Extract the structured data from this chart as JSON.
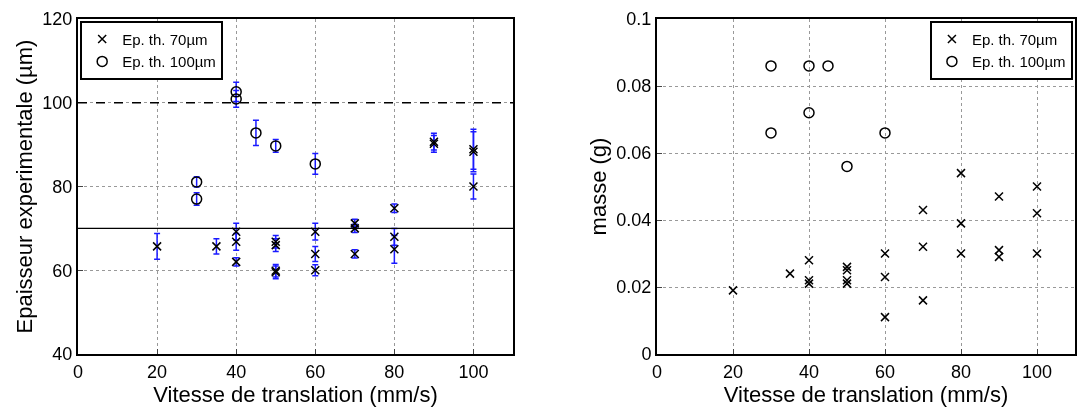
{
  "chart_data": [
    {
      "type": "scatter",
      "xlabel": "Vitesse de translation (mm/s)",
      "ylabel": "Epaisseur experimentale (µm)",
      "xlim": [
        0,
        110
      ],
      "ylim": [
        40,
        120
      ],
      "xticks": [
        0,
        20,
        40,
        60,
        80,
        100
      ],
      "yticks": [
        40,
        60,
        80,
        100,
        120
      ],
      "grid": true,
      "legend": "top left",
      "series": [
        {
          "name": "Ep. th. 70µm",
          "color": "#000000",
          "marker": "cross",
          "x": [
            20,
            35,
            40,
            40,
            40,
            50,
            50,
            50,
            50,
            60,
            60,
            60,
            70,
            70,
            70,
            80,
            80,
            80,
            90,
            90,
            100,
            100,
            100
          ],
          "values": [
            65.7,
            65.7,
            69.2,
            66.8,
            62.0,
            66.8,
            66.0,
            59.9,
            59.5,
            69.2,
            63.9,
            60.0,
            71.2,
            70.0,
            63.9,
            74.8,
            68.0,
            65.0,
            90.7,
            90.2,
            88.9,
            88.3,
            80.0
          ],
          "errors": [
            3.1,
            1.8,
            2,
            2,
            1,
            1.5,
            1.5,
            1.5,
            1.5,
            2,
            1.8,
            1.3,
            1,
            1,
            1,
            1,
            2,
            3.3,
            2,
            2,
            4.8,
            4.8,
            3
          ]
        },
        {
          "name": "Ep. th. 100µm",
          "color": "#000000",
          "marker": "circle",
          "x": [
            30,
            30,
            40,
            40,
            45,
            50,
            60
          ],
          "values": [
            81.1,
            77.0,
            102.6,
            100.9,
            92.8,
            89.7,
            85.4
          ],
          "errors": [
            1.2,
            1.5,
            2.3,
            2,
            3,
            1.5,
            2.5
          ]
        }
      ],
      "ref_lines": [
        {
          "axis": "y",
          "value": 100,
          "color": "#000000",
          "line_style": "dashed"
        },
        {
          "axis": "y",
          "value": 70,
          "color": "#000000",
          "line_style": "solid"
        }
      ]
    },
    {
      "type": "scatter",
      "xlabel": "Vitesse de translation (mm/s)",
      "ylabel": "masse (g)",
      "xlim": [
        0,
        110
      ],
      "ylim": [
        0,
        0.1
      ],
      "xticks": [
        0,
        20,
        40,
        60,
        80,
        100
      ],
      "yticks": [
        0,
        0.02,
        0.04,
        0.06,
        0.08,
        0.1
      ],
      "grid": true,
      "legend": "top right",
      "series": [
        {
          "name": "Ep. th. 70µm",
          "color": "#000000",
          "marker": "cross",
          "x": [
            20,
            35,
            40,
            40,
            40,
            50,
            50,
            50,
            50,
            60,
            60,
            60,
            70,
            70,
            70,
            80,
            80,
            80,
            90,
            90,
            90,
            100,
            100,
            100
          ],
          "values": [
            0.019,
            0.024,
            0.028,
            0.022,
            0.021,
            0.026,
            0.025,
            0.022,
            0.021,
            0.03,
            0.023,
            0.011,
            0.043,
            0.032,
            0.016,
            0.054,
            0.039,
            0.03,
            0.047,
            0.031,
            0.029,
            0.05,
            0.042,
            0.03
          ]
        },
        {
          "name": "Ep. th. 100µm",
          "color": "#000000",
          "marker": "circle",
          "x": [
            30,
            30,
            40,
            40,
            45,
            50,
            60
          ],
          "values": [
            0.086,
            0.066,
            0.086,
            0.072,
            0.086,
            0.056,
            0.066
          ]
        }
      ]
    }
  ]
}
